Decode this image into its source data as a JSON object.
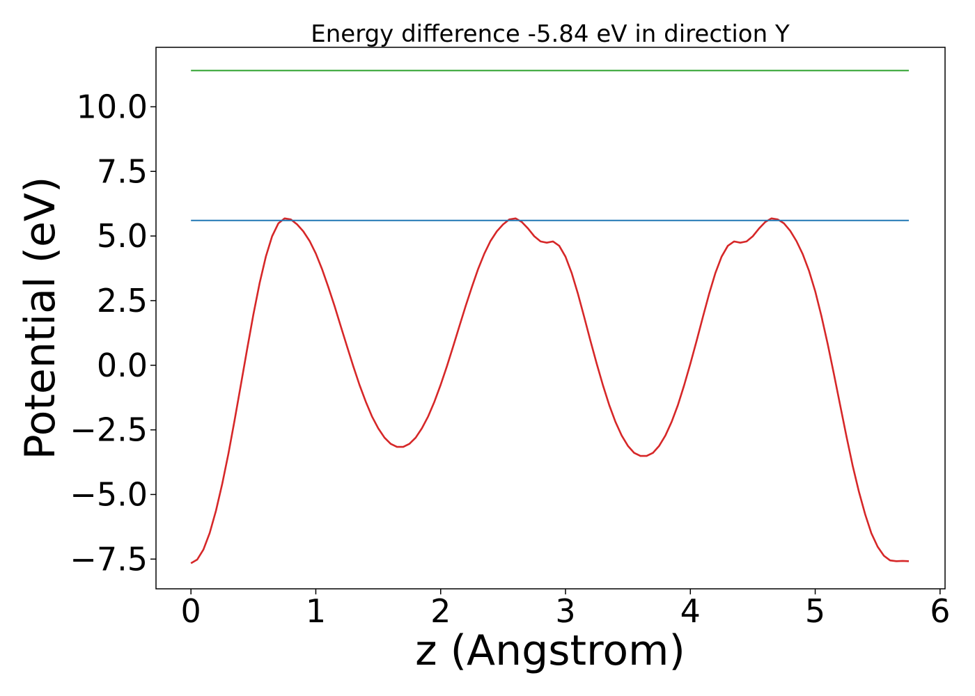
{
  "chart_data": {
    "type": "line",
    "title": "Energy difference -5.84 eV in direction Y",
    "xlabel": "z (Angstrom)",
    "ylabel": "Potential (eV)",
    "xlim": [
      -0.28,
      6.04
    ],
    "ylim": [
      -8.65,
      12.3
    ],
    "xticks": [
      0,
      1,
      2,
      3,
      4,
      5,
      6
    ],
    "xtick_labels": [
      "0",
      "1",
      "2",
      "3",
      "4",
      "5",
      "6"
    ],
    "yticks": [
      -7.5,
      -5.0,
      -2.5,
      0.0,
      2.5,
      5.0,
      7.5,
      10.0
    ],
    "ytick_labels": [
      "−7.5",
      "−5.0",
      "−2.5",
      "0.0",
      "2.5",
      "5.0",
      "7.5",
      "10.0"
    ],
    "grid": false,
    "series": [
      {
        "color": "#d62728",
        "x": [
          0.0,
          0.05,
          0.1,
          0.15,
          0.2,
          0.25,
          0.3,
          0.35,
          0.4,
          0.45,
          0.5,
          0.55,
          0.6,
          0.65,
          0.7,
          0.75,
          0.8,
          0.85,
          0.9,
          0.95,
          1.0,
          1.05,
          1.1,
          1.15,
          1.2,
          1.25,
          1.3,
          1.35,
          1.4,
          1.45,
          1.5,
          1.55,
          1.6,
          1.65,
          1.7,
          1.75,
          1.8,
          1.85,
          1.9,
          1.95,
          2.0,
          2.05,
          2.1,
          2.15,
          2.2,
          2.25,
          2.3,
          2.35,
          2.4,
          2.45,
          2.5,
          2.55,
          2.6,
          2.65,
          2.7,
          2.75,
          2.8,
          2.85,
          2.9,
          2.95,
          3.0,
          3.05,
          3.1,
          3.15,
          3.2,
          3.25,
          3.3,
          3.35,
          3.4,
          3.45,
          3.5,
          3.55,
          3.6,
          3.65,
          3.7,
          3.75,
          3.8,
          3.85,
          3.9,
          3.95,
          4.0,
          4.05,
          4.1,
          4.15,
          4.2,
          4.25,
          4.3,
          4.35,
          4.4,
          4.45,
          4.5,
          4.55,
          4.6,
          4.65,
          4.7,
          4.75,
          4.8,
          4.85,
          4.9,
          4.95,
          5.0,
          5.05,
          5.1,
          5.15,
          5.2,
          5.25,
          5.3,
          5.35,
          5.4,
          5.45,
          5.5,
          5.55,
          5.6,
          5.65,
          5.7,
          5.75
        ],
        "y": [
          -7.66,
          -7.52,
          -7.13,
          -6.49,
          -5.63,
          -4.6,
          -3.42,
          -2.12,
          -0.75,
          0.63,
          1.96,
          3.18,
          4.21,
          4.99,
          5.49,
          5.68,
          5.64,
          5.45,
          5.18,
          4.81,
          4.32,
          3.72,
          3.03,
          2.29,
          1.51,
          0.73,
          -0.04,
          -0.76,
          -1.41,
          -1.98,
          -2.44,
          -2.8,
          -3.04,
          -3.16,
          -3.16,
          -3.04,
          -2.8,
          -2.44,
          -1.98,
          -1.41,
          -0.76,
          -0.04,
          0.73,
          1.51,
          2.29,
          3.03,
          3.72,
          4.32,
          4.81,
          5.18,
          5.45,
          5.64,
          5.68,
          5.54,
          5.29,
          4.99,
          4.79,
          4.74,
          4.79,
          4.62,
          4.2,
          3.56,
          2.76,
          1.86,
          0.94,
          0.06,
          -0.78,
          -1.54,
          -2.19,
          -2.72,
          -3.12,
          -3.39,
          -3.51,
          -3.51,
          -3.39,
          -3.12,
          -2.72,
          -2.19,
          -1.54,
          -0.78,
          0.06,
          0.94,
          1.86,
          2.76,
          3.56,
          4.2,
          4.62,
          4.79,
          4.74,
          4.79,
          4.99,
          5.29,
          5.54,
          5.68,
          5.64,
          5.49,
          5.2,
          4.8,
          4.3,
          3.66,
          2.86,
          1.9,
          0.82,
          -0.34,
          -1.55,
          -2.75,
          -3.88,
          -4.89,
          -5.77,
          -6.5,
          -7.02,
          -7.37,
          -7.55,
          -7.58,
          -7.57,
          -7.58
        ]
      },
      {
        "color": "#1f77b4",
        "x": [
          0.0,
          5.75
        ],
        "y": [
          5.6,
          5.6
        ]
      },
      {
        "color": "#2ca02c",
        "x": [
          0.0,
          5.75
        ],
        "y": [
          11.4,
          11.4
        ]
      }
    ]
  }
}
